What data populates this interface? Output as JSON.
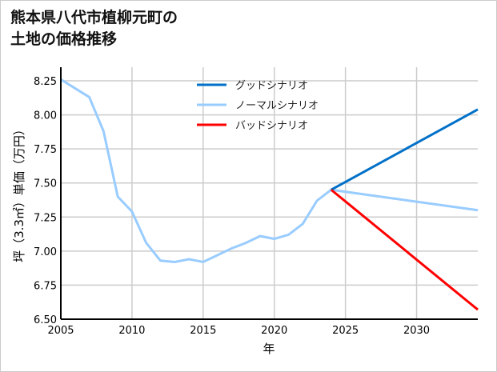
{
  "chart_data": {
    "type": "line",
    "title_lines": [
      "熊本県八代市植柳元町の",
      "土地の価格推移"
    ],
    "xlabel": "年",
    "ylabel": "坪（3.3㎡）単価（万円）",
    "xlim": [
      2005,
      2034.3
    ],
    "ylim": [
      6.5,
      8.35
    ],
    "xticks": [
      2005,
      2010,
      2015,
      2020,
      2025,
      2030
    ],
    "yticks": [
      "6.50",
      "6.75",
      "7.00",
      "7.25",
      "7.50",
      "7.75",
      "8.00",
      "8.25"
    ],
    "grid": true,
    "legend_position": "top-center",
    "series": [
      {
        "name": "グッドシナリオ",
        "color": "#0070c8",
        "x": [
          2024,
          2034.3
        ],
        "y": [
          7.45,
          8.04
        ]
      },
      {
        "name": "ノーマルシナリオ",
        "color": "#99ccff",
        "x": [
          2005,
          2007,
          2008,
          2009,
          2010,
          2011,
          2012,
          2013,
          2014,
          2015,
          2016,
          2017,
          2018,
          2019,
          2020,
          2021,
          2022,
          2023,
          2024,
          2034.3
        ],
        "y": [
          8.26,
          8.13,
          7.88,
          7.4,
          7.29,
          7.06,
          6.93,
          6.92,
          6.94,
          6.92,
          6.97,
          7.02,
          7.06,
          7.11,
          7.09,
          7.12,
          7.2,
          7.37,
          7.45,
          7.3
        ]
      },
      {
        "name": "バッドシナリオ",
        "color": "#ff0000",
        "x": [
          2024,
          2034.3
        ],
        "y": [
          7.45,
          6.57
        ]
      }
    ]
  }
}
